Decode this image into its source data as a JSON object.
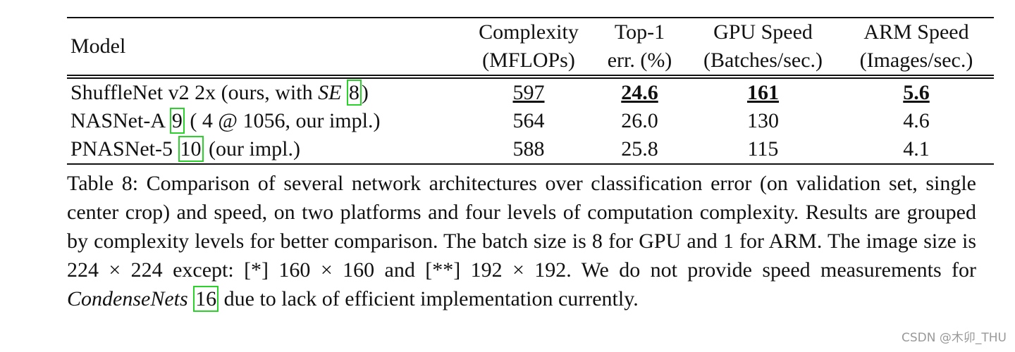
{
  "table": {
    "header": [
      [
        "Model"
      ],
      [
        "Complexity",
        "(MFLOPs)"
      ],
      [
        "Top-1",
        "err. (%)"
      ],
      [
        "GPU Speed",
        "(Batches/sec.)"
      ],
      [
        "ARM Speed",
        "(Images/sec.)"
      ]
    ],
    "rows": [
      {
        "model": [
          "ShuffleNet v2 2x (ours, with",
          "SE",
          "8",
          ")"
        ],
        "cells": [
          "597",
          "24.6",
          "161",
          "5.6"
        ]
      },
      {
        "model": [
          "NASNet-A",
          "9",
          "( 4 @ 1056, our impl.)"
        ],
        "cells": [
          "564",
          "26.0",
          "130",
          "4.6"
        ]
      },
      {
        "model": [
          "PNASNet-5",
          "10",
          "(our impl.)"
        ],
        "cells": [
          "588",
          "25.8",
          "115",
          "4.1"
        ]
      }
    ]
  },
  "caption": [
    "Table 8: Comparison of several network architectures over classification error (on validation set, single center crop) and speed, on two platforms and four levels of computation complexity. Results are grouped by complexity levels for better comparison. The batch size is 8 for GPU and 1 for ARM. The image size is 224 × 224 except: [*] 160 × 160 and [**] 192 × 192. We do not provide speed measurements for",
    "CondenseNets",
    "16",
    "due to lack of efficient implementation currently."
  ],
  "watermark": "CSDN @木卯_THU"
}
